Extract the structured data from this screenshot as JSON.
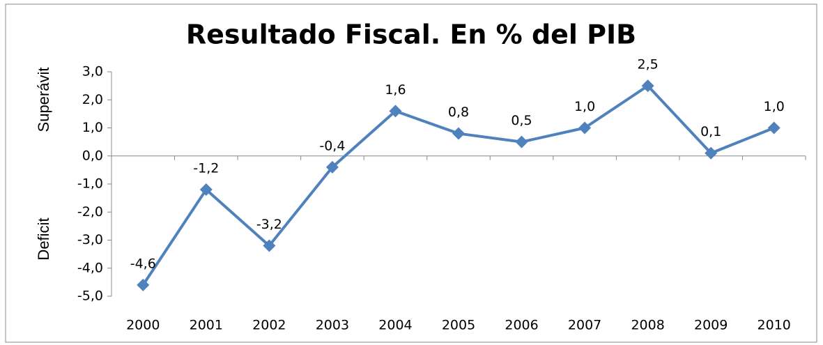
{
  "chart_data": {
    "type": "line",
    "title": "Resultado Fiscal. En % del PIB",
    "y_label_positive": "Superávit",
    "y_label_negative": "Deficit",
    "categories": [
      "2000",
      "2001",
      "2002",
      "2003",
      "2004",
      "2005",
      "2006",
      "2007",
      "2008",
      "2009",
      "2010"
    ],
    "series": [
      {
        "name": "Resultado Fiscal",
        "color": "#4f81bd",
        "values": [
          -4.6,
          -1.2,
          -3.2,
          -0.4,
          1.6,
          0.8,
          0.5,
          1.0,
          2.5,
          0.1,
          1.0
        ],
        "value_labels": [
          "-4,6",
          "-1,2",
          "-3,2",
          "-0,4",
          "1,6",
          "0,8",
          "0,5",
          "1,0",
          "2,5",
          "0,1",
          "1,0"
        ]
      }
    ],
    "ylim": [
      -5,
      3
    ],
    "yticks": [
      {
        "value": 3,
        "label": "3,0"
      },
      {
        "value": 2,
        "label": "2,0"
      },
      {
        "value": 1,
        "label": "1,0"
      },
      {
        "value": 0,
        "label": "0,0"
      },
      {
        "value": -1,
        "label": "-1,0"
      },
      {
        "value": -2,
        "label": "-2,0"
      },
      {
        "value": -3,
        "label": "-3,0"
      },
      {
        "value": -4,
        "label": "-4,0"
      },
      {
        "value": -5,
        "label": "-5,0"
      }
    ],
    "grid": false
  }
}
